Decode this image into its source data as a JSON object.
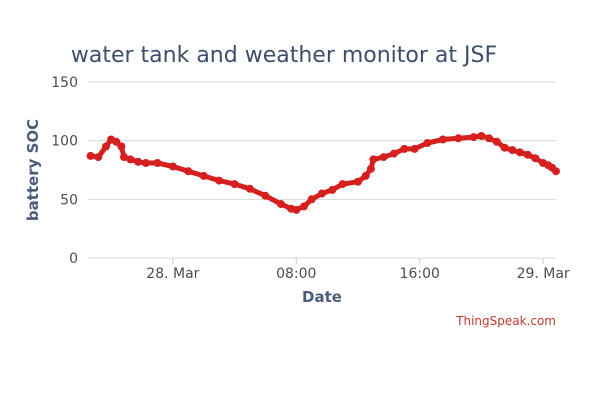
{
  "chart_data": {
    "type": "line",
    "title": "water tank and weather monitor at JSF",
    "xlabel": "Date",
    "ylabel": "battery SOC",
    "ylim": [
      0,
      150
    ],
    "yticks": [
      0,
      50,
      100,
      150
    ],
    "xlim": [
      "2024-03-27 18:30",
      "2024-03-29 00:50"
    ],
    "xticks": [
      {
        "t": "2024-03-28 00:00",
        "label": "28. Mar"
      },
      {
        "t": "2024-03-28 08:00",
        "label": "08:00"
      },
      {
        "t": "2024-03-28 16:00",
        "label": "16:00"
      },
      {
        "t": "2024-03-29 00:00",
        "label": "29. Mar"
      }
    ],
    "grid": true,
    "legend": "none",
    "series": [
      {
        "color": "#d62020",
        "points": [
          [
            "2024-03-27 18:40",
            87
          ],
          [
            "2024-03-27 19:10",
            86
          ],
          [
            "2024-03-27 19:40",
            95
          ],
          [
            "2024-03-27 20:00",
            101
          ],
          [
            "2024-03-27 20:20",
            99
          ],
          [
            "2024-03-27 20:40",
            95
          ],
          [
            "2024-03-27 20:50",
            86
          ],
          [
            "2024-03-27 21:15",
            84
          ],
          [
            "2024-03-27 21:45",
            82
          ],
          [
            "2024-03-27 22:15",
            81
          ],
          [
            "2024-03-27 23:00",
            81
          ],
          [
            "2024-03-28 00:00",
            78
          ],
          [
            "2024-03-28 01:00",
            74
          ],
          [
            "2024-03-28 02:00",
            70
          ],
          [
            "2024-03-28 03:00",
            66
          ],
          [
            "2024-03-28 04:00",
            63
          ],
          [
            "2024-03-28 05:00",
            59
          ],
          [
            "2024-03-28 06:00",
            53
          ],
          [
            "2024-03-28 07:00",
            46
          ],
          [
            "2024-03-28 07:40",
            42
          ],
          [
            "2024-03-28 08:00",
            41
          ],
          [
            "2024-03-28 08:30",
            44
          ],
          [
            "2024-03-28 09:00",
            50
          ],
          [
            "2024-03-28 09:40",
            55
          ],
          [
            "2024-03-28 10:20",
            58
          ],
          [
            "2024-03-28 11:00",
            63
          ],
          [
            "2024-03-28 12:00",
            65
          ],
          [
            "2024-03-28 12:30",
            70
          ],
          [
            "2024-03-28 12:50",
            76
          ],
          [
            "2024-03-28 13:00",
            84
          ],
          [
            "2024-03-28 13:40",
            86
          ],
          [
            "2024-03-28 14:20",
            89
          ],
          [
            "2024-03-28 15:00",
            93
          ],
          [
            "2024-03-28 15:40",
            93
          ],
          [
            "2024-03-28 16:30",
            98
          ],
          [
            "2024-03-28 17:30",
            101
          ],
          [
            "2024-03-28 18:30",
            102
          ],
          [
            "2024-03-28 19:30",
            103
          ],
          [
            "2024-03-28 20:00",
            104
          ],
          [
            "2024-03-28 20:30",
            102
          ],
          [
            "2024-03-28 21:00",
            99
          ],
          [
            "2024-03-28 21:30",
            94
          ],
          [
            "2024-03-28 22:00",
            92
          ],
          [
            "2024-03-28 22:30",
            90
          ],
          [
            "2024-03-28 23:00",
            88
          ],
          [
            "2024-03-28 23:30",
            85
          ],
          [
            "2024-03-29 00:00",
            81
          ],
          [
            "2024-03-29 00:20",
            79
          ],
          [
            "2024-03-29 00:35",
            77
          ],
          [
            "2024-03-29 00:50",
            74
          ]
        ]
      }
    ]
  },
  "credit": "ThingSpeak.com"
}
